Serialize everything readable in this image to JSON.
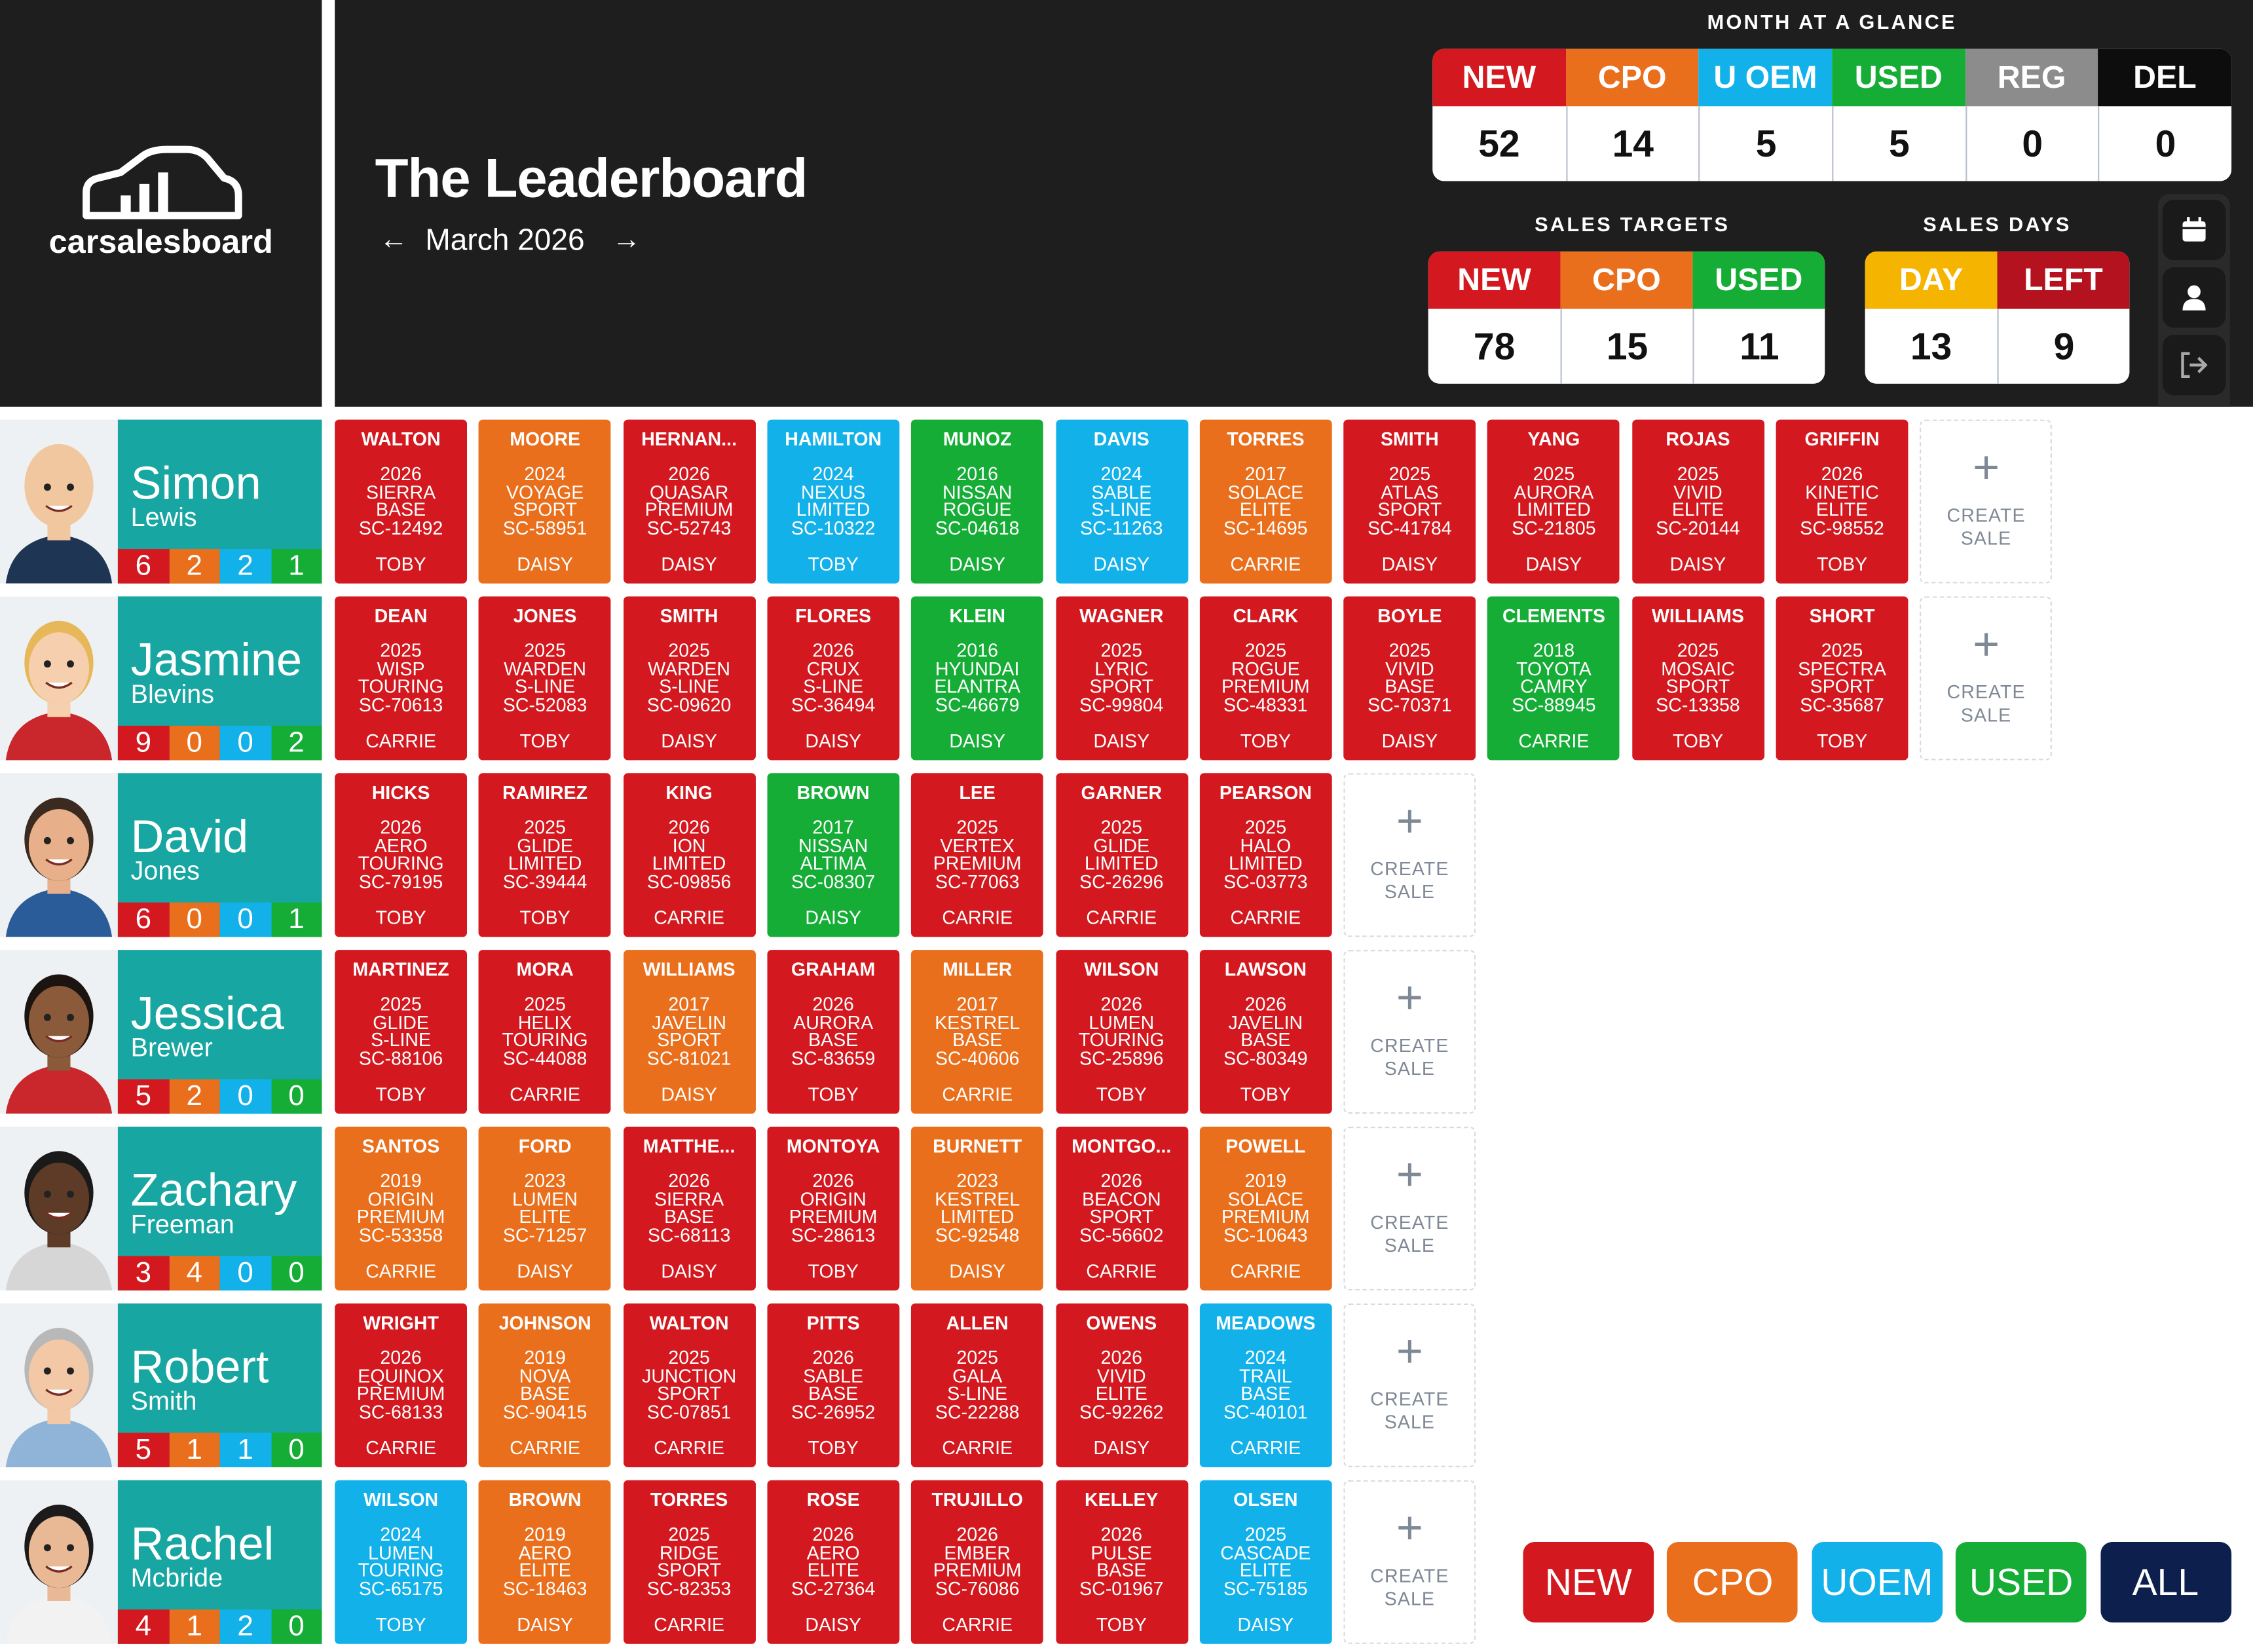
{
  "logo": "carsalesboard",
  "title": "The Leaderboard",
  "period": "March 2026",
  "sale_colors": {
    "new": "#d3191f",
    "cpo": "#ea6f1c",
    "uoem": "#13b1ea",
    "used": "#16ad37"
  },
  "month_at_a_glance": {
    "title": "MONTH AT A GLANCE",
    "columns": [
      {
        "label": "NEW",
        "value": 52,
        "color": "#d3191f"
      },
      {
        "label": "CPO",
        "value": 14,
        "color": "#ea6f1c"
      },
      {
        "label": "U OEM",
        "value": 5,
        "color": "#13b1ea"
      },
      {
        "label": "USED",
        "value": 5,
        "color": "#16ad37"
      },
      {
        "label": "REG",
        "value": 0,
        "color": "#8c8c8c"
      },
      {
        "label": "DEL",
        "value": 0,
        "color": "#0d0d0d"
      }
    ]
  },
  "sales_targets": {
    "title": "SALES TARGETS",
    "columns": [
      {
        "label": "NEW",
        "value": 78,
        "color": "#d3191f"
      },
      {
        "label": "CPO",
        "value": 15,
        "color": "#ea6f1c"
      },
      {
        "label": "USED",
        "value": 11,
        "color": "#16ad37"
      }
    ]
  },
  "sales_days": {
    "title": "SALES DAYS",
    "columns": [
      {
        "label": "DAY",
        "value": 13,
        "color": "#f4b400"
      },
      {
        "label": "LEFT",
        "value": 9,
        "color": "#b5121f"
      }
    ]
  },
  "create_sale": "CREATE SALE",
  "filters": [
    {
      "label": "NEW",
      "color": "#d3191f"
    },
    {
      "label": "CPO",
      "color": "#ea6f1c"
    },
    {
      "label": "UOEM",
      "color": "#13b1ea"
    },
    {
      "label": "USED",
      "color": "#16ad37"
    },
    {
      "label": "ALL",
      "color": "#0c1f4d"
    }
  ],
  "team": [
    {
      "first": "Simon",
      "last": "Lewis",
      "counts": {
        "new": 6,
        "cpo": 2,
        "uoem": 2,
        "used": 1
      },
      "sales": [
        {
          "customer": "WALTON",
          "year": 2026,
          "model": "SIERRA",
          "trim": "BASE",
          "stock": "SC-12492",
          "rep": "TOBY",
          "type": "new"
        },
        {
          "customer": "MOORE",
          "year": 2024,
          "model": "VOYAGE",
          "trim": "SPORT",
          "stock": "SC-58951",
          "rep": "DAISY",
          "type": "cpo"
        },
        {
          "customer": "HERNAN...",
          "year": 2026,
          "model": "QUASAR",
          "trim": "PREMIUM",
          "stock": "SC-52743",
          "rep": "DAISY",
          "type": "new"
        },
        {
          "customer": "HAMILTON",
          "year": 2024,
          "model": "NEXUS",
          "trim": "LIMITED",
          "stock": "SC-10322",
          "rep": "TOBY",
          "type": "uoem"
        },
        {
          "customer": "MUNOZ",
          "year": 2016,
          "model": "NISSAN",
          "trim": "ROGUE",
          "stock": "SC-04618",
          "rep": "DAISY",
          "type": "used"
        },
        {
          "customer": "DAVIS",
          "year": 2024,
          "model": "SABLE",
          "trim": "S-LINE",
          "stock": "SC-11263",
          "rep": "DAISY",
          "type": "uoem"
        },
        {
          "customer": "TORRES",
          "year": 2017,
          "model": "SOLACE",
          "trim": "ELITE",
          "stock": "SC-14695",
          "rep": "CARRIE",
          "type": "cpo"
        },
        {
          "customer": "SMITH",
          "year": 2025,
          "model": "ATLAS",
          "trim": "SPORT",
          "stock": "SC-41784",
          "rep": "DAISY",
          "type": "new"
        },
        {
          "customer": "YANG",
          "year": 2025,
          "model": "AURORA",
          "trim": "LIMITED",
          "stock": "SC-21805",
          "rep": "DAISY",
          "type": "new"
        },
        {
          "customer": "ROJAS",
          "year": 2025,
          "model": "VIVID",
          "trim": "ELITE",
          "stock": "SC-20144",
          "rep": "DAISY",
          "type": "new"
        },
        {
          "customer": "GRIFFIN",
          "year": 2026,
          "model": "KINETIC",
          "trim": "ELITE",
          "stock": "SC-98552",
          "rep": "TOBY",
          "type": "new"
        }
      ]
    },
    {
      "first": "Jasmine",
      "last": "Blevins",
      "counts": {
        "new": 9,
        "cpo": 0,
        "uoem": 0,
        "used": 2
      },
      "sales": [
        {
          "customer": "DEAN",
          "year": 2025,
          "model": "WISP",
          "trim": "TOURING",
          "stock": "SC-70613",
          "rep": "CARRIE",
          "type": "new"
        },
        {
          "customer": "JONES",
          "year": 2025,
          "model": "WARDEN",
          "trim": "S-LINE",
          "stock": "SC-52083",
          "rep": "TOBY",
          "type": "new"
        },
        {
          "customer": "SMITH",
          "year": 2025,
          "model": "WARDEN",
          "trim": "S-LINE",
          "stock": "SC-09620",
          "rep": "DAISY",
          "type": "new"
        },
        {
          "customer": "FLORES",
          "year": 2026,
          "model": "CRUX",
          "trim": "S-LINE",
          "stock": "SC-36494",
          "rep": "DAISY",
          "type": "new"
        },
        {
          "customer": "KLEIN",
          "year": 2016,
          "model": "HYUNDAI",
          "trim": "ELANTRA",
          "stock": "SC-46679",
          "rep": "DAISY",
          "type": "used"
        },
        {
          "customer": "WAGNER",
          "year": 2025,
          "model": "LYRIC",
          "trim": "SPORT",
          "stock": "SC-99804",
          "rep": "DAISY",
          "type": "new"
        },
        {
          "customer": "CLARK",
          "year": 2025,
          "model": "ROGUE",
          "trim": "PREMIUM",
          "stock": "SC-48331",
          "rep": "TOBY",
          "type": "new"
        },
        {
          "customer": "BOYLE",
          "year": 2025,
          "model": "VIVID",
          "trim": "BASE",
          "stock": "SC-70371",
          "rep": "DAISY",
          "type": "new"
        },
        {
          "customer": "CLEMENTS",
          "year": 2018,
          "model": "TOYOTA",
          "trim": "CAMRY",
          "stock": "SC-88945",
          "rep": "CARRIE",
          "type": "used"
        },
        {
          "customer": "WILLIAMS",
          "year": 2025,
          "model": "MOSAIC",
          "trim": "SPORT",
          "stock": "SC-13358",
          "rep": "TOBY",
          "type": "new"
        },
        {
          "customer": "SHORT",
          "year": 2025,
          "model": "SPECTRA",
          "trim": "SPORT",
          "stock": "SC-35687",
          "rep": "TOBY",
          "type": "new"
        }
      ]
    },
    {
      "first": "David",
      "last": "Jones",
      "counts": {
        "new": 6,
        "cpo": 0,
        "uoem": 0,
        "used": 1
      },
      "sales": [
        {
          "customer": "HICKS",
          "year": 2026,
          "model": "AERO",
          "trim": "TOURING",
          "stock": "SC-79195",
          "rep": "TOBY",
          "type": "new"
        },
        {
          "customer": "RAMIREZ",
          "year": 2025,
          "model": "GLIDE",
          "trim": "LIMITED",
          "stock": "SC-39444",
          "rep": "TOBY",
          "type": "new"
        },
        {
          "customer": "KING",
          "year": 2026,
          "model": "ION",
          "trim": "LIMITED",
          "stock": "SC-09856",
          "rep": "CARRIE",
          "type": "new"
        },
        {
          "customer": "BROWN",
          "year": 2017,
          "model": "NISSAN",
          "trim": "ALTIMA",
          "stock": "SC-08307",
          "rep": "DAISY",
          "type": "used"
        },
        {
          "customer": "LEE",
          "year": 2025,
          "model": "VERTEX",
          "trim": "PREMIUM",
          "stock": "SC-77063",
          "rep": "CARRIE",
          "type": "new"
        },
        {
          "customer": "GARNER",
          "year": 2025,
          "model": "GLIDE",
          "trim": "LIMITED",
          "stock": "SC-26296",
          "rep": "CARRIE",
          "type": "new"
        },
        {
          "customer": "PEARSON",
          "year": 2025,
          "model": "HALO",
          "trim": "LIMITED",
          "stock": "SC-03773",
          "rep": "CARRIE",
          "type": "new"
        }
      ]
    },
    {
      "first": "Jessica",
      "last": "Brewer",
      "counts": {
        "new": 5,
        "cpo": 2,
        "uoem": 0,
        "used": 0
      },
      "sales": [
        {
          "customer": "MARTINEZ",
          "year": 2025,
          "model": "GLIDE",
          "trim": "S-LINE",
          "stock": "SC-88106",
          "rep": "TOBY",
          "type": "new"
        },
        {
          "customer": "MORA",
          "year": 2025,
          "model": "HELIX",
          "trim": "TOURING",
          "stock": "SC-44088",
          "rep": "CARRIE",
          "type": "new"
        },
        {
          "customer": "WILLIAMS",
          "year": 2017,
          "model": "JAVELIN",
          "trim": "SPORT",
          "stock": "SC-81021",
          "rep": "DAISY",
          "type": "cpo"
        },
        {
          "customer": "GRAHAM",
          "year": 2026,
          "model": "AURORA",
          "trim": "BASE",
          "stock": "SC-83659",
          "rep": "TOBY",
          "type": "new"
        },
        {
          "customer": "MILLER",
          "year": 2017,
          "model": "KESTREL",
          "trim": "BASE",
          "stock": "SC-40606",
          "rep": "CARRIE",
          "type": "cpo"
        },
        {
          "customer": "WILSON",
          "year": 2026,
          "model": "LUMEN",
          "trim": "TOURING",
          "stock": "SC-25896",
          "rep": "TOBY",
          "type": "new"
        },
        {
          "customer": "LAWSON",
          "year": 2026,
          "model": "JAVELIN",
          "trim": "BASE",
          "stock": "SC-80349",
          "rep": "TOBY",
          "type": "new"
        }
      ]
    },
    {
      "first": "Zachary",
      "last": "Freeman",
      "counts": {
        "new": 3,
        "cpo": 4,
        "uoem": 0,
        "used": 0
      },
      "sales": [
        {
          "customer": "SANTOS",
          "year": 2019,
          "model": "ORIGIN",
          "trim": "PREMIUM",
          "stock": "SC-53358",
          "rep": "CARRIE",
          "type": "cpo"
        },
        {
          "customer": "FORD",
          "year": 2023,
          "model": "LUMEN",
          "trim": "ELITE",
          "stock": "SC-71257",
          "rep": "DAISY",
          "type": "cpo"
        },
        {
          "customer": "MATTHE...",
          "year": 2026,
          "model": "SIERRA",
          "trim": "BASE",
          "stock": "SC-68113",
          "rep": "DAISY",
          "type": "new"
        },
        {
          "customer": "MONTOYA",
          "year": 2026,
          "model": "ORIGIN",
          "trim": "PREMIUM",
          "stock": "SC-28613",
          "rep": "TOBY",
          "type": "new"
        },
        {
          "customer": "BURNETT",
          "year": 2023,
          "model": "KESTREL",
          "trim": "LIMITED",
          "stock": "SC-92548",
          "rep": "DAISY",
          "type": "cpo"
        },
        {
          "customer": "MONTGO...",
          "year": 2026,
          "model": "BEACON",
          "trim": "SPORT",
          "stock": "SC-56602",
          "rep": "CARRIE",
          "type": "new"
        },
        {
          "customer": "POWELL",
          "year": 2019,
          "model": "SOLACE",
          "trim": "PREMIUM",
          "stock": "SC-10643",
          "rep": "CARRIE",
          "type": "cpo"
        }
      ]
    },
    {
      "first": "Robert",
      "last": "Smith",
      "counts": {
        "new": 5,
        "cpo": 1,
        "uoem": 1,
        "used": 0
      },
      "sales": [
        {
          "customer": "WRIGHT",
          "year": 2026,
          "model": "EQUINOX",
          "trim": "PREMIUM",
          "stock": "SC-68133",
          "rep": "CARRIE",
          "type": "new"
        },
        {
          "customer": "JOHNSON",
          "year": 2019,
          "model": "NOVA",
          "trim": "BASE",
          "stock": "SC-90415",
          "rep": "CARRIE",
          "type": "cpo"
        },
        {
          "customer": "WALTON",
          "year": 2025,
          "model": "JUNCTION",
          "trim": "SPORT",
          "stock": "SC-07851",
          "rep": "CARRIE",
          "type": "new"
        },
        {
          "customer": "PITTS",
          "year": 2026,
          "model": "SABLE",
          "trim": "BASE",
          "stock": "SC-26952",
          "rep": "TOBY",
          "type": "new"
        },
        {
          "customer": "ALLEN",
          "year": 2025,
          "model": "GALA",
          "trim": "S-LINE",
          "stock": "SC-22288",
          "rep": "CARRIE",
          "type": "new"
        },
        {
          "customer": "OWENS",
          "year": 2026,
          "model": "VIVID",
          "trim": "ELITE",
          "stock": "SC-92262",
          "rep": "DAISY",
          "type": "new"
        },
        {
          "customer": "MEADOWS",
          "year": 2024,
          "model": "TRAIL",
          "trim": "BASE",
          "stock": "SC-40101",
          "rep": "CARRIE",
          "type": "uoem"
        }
      ]
    },
    {
      "first": "Rachel",
      "last": "Mcbride",
      "counts": {
        "new": 4,
        "cpo": 1,
        "uoem": 2,
        "used": 0
      },
      "sales": [
        {
          "customer": "WILSON",
          "year": 2024,
          "model": "LUMEN",
          "trim": "TOURING",
          "stock": "SC-65175",
          "rep": "TOBY",
          "type": "uoem"
        },
        {
          "customer": "BROWN",
          "year": 2019,
          "model": "AERO",
          "trim": "ELITE",
          "stock": "SC-18463",
          "rep": "DAISY",
          "type": "cpo"
        },
        {
          "customer": "TORRES",
          "year": 2025,
          "model": "RIDGE",
          "trim": "SPORT",
          "stock": "SC-82353",
          "rep": "CARRIE",
          "type": "new"
        },
        {
          "customer": "ROSE",
          "year": 2026,
          "model": "AERO",
          "trim": "ELITE",
          "stock": "SC-27364",
          "rep": "DAISY",
          "type": "new"
        },
        {
          "customer": "TRUJILLO",
          "year": 2026,
          "model": "EMBER",
          "trim": "PREMIUM",
          "stock": "SC-76086",
          "rep": "CARRIE",
          "type": "new"
        },
        {
          "customer": "KELLEY",
          "year": 2026,
          "model": "PULSE",
          "trim": "BASE",
          "stock": "SC-01967",
          "rep": "TOBY",
          "type": "new"
        },
        {
          "customer": "OLSEN",
          "year": 2025,
          "model": "CASCADE",
          "trim": "ELITE",
          "stock": "SC-75185",
          "rep": "DAISY",
          "type": "uoem"
        }
      ]
    }
  ]
}
